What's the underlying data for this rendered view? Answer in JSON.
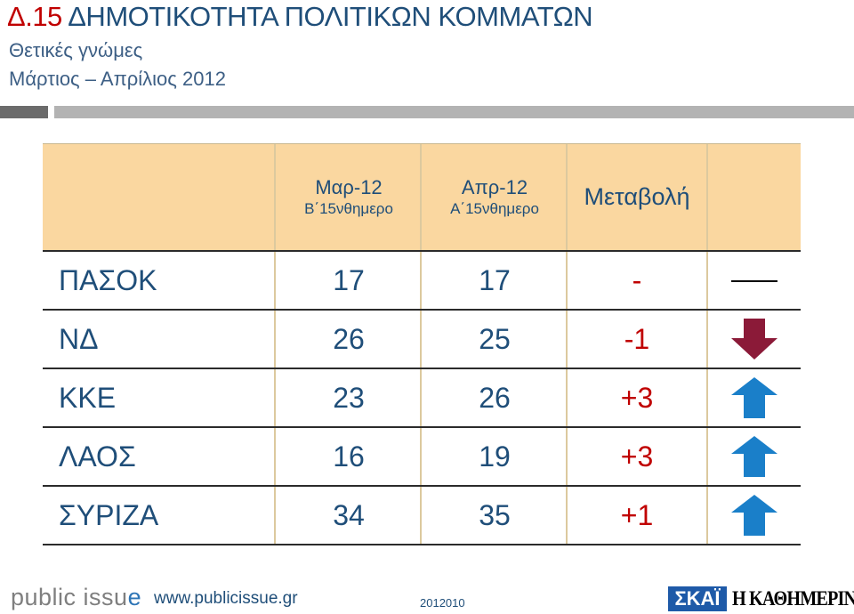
{
  "header": {
    "code": "Δ.15",
    "title": "ΔΗΜΟΤΙΚΟΤΗΤΑ ΠΟΛΙΤΙΚΩΝ ΚΟΜΜΑΤΩΝ",
    "subtitle": "Θετικές γνώμες",
    "period": "Μάρτιος – Απρίλιος 2012"
  },
  "table": {
    "columns": [
      {
        "label": "Μαρ-12",
        "sublabel": "Β΄15νθημερο"
      },
      {
        "label": "Απρ-12",
        "sublabel": "Α΄15νθημερο"
      },
      {
        "label": "Μεταβολή"
      }
    ],
    "rows": [
      {
        "party": "ΠΑΣΟΚ",
        "mar": "17",
        "apr": "17",
        "change": "-",
        "trend": "flat"
      },
      {
        "party": "ΝΔ",
        "mar": "26",
        "apr": "25",
        "change": "-1",
        "trend": "down"
      },
      {
        "party": "ΚΚΕ",
        "mar": "23",
        "apr": "26",
        "change": "+3",
        "trend": "up"
      },
      {
        "party": "ΛΑΟΣ",
        "mar": "16",
        "apr": "19",
        "change": "+3",
        "trend": "up"
      },
      {
        "party": "ΣΥΡΙΖΑ",
        "mar": "34",
        "apr": "35",
        "change": "+1",
        "trend": "up"
      }
    ]
  },
  "colors": {
    "title_code": "#c00000",
    "title": "#1f4e79",
    "header_bg": "#fad7a0",
    "change_text": "#c00000",
    "arrow_up": "#1a7fc9",
    "arrow_down": "#8b1a38"
  },
  "icons": {
    "flat": "flat-line-icon",
    "down": "arrow-down-icon",
    "up": "arrow-up-icon"
  },
  "footer": {
    "logo_part1": "public issu",
    "logo_part2": "e",
    "url": "www.publicissue.gr",
    "code": "2012010",
    "skai": "ΣΚΑΪ",
    "kathimerini": "Η ΚΑΘΗΜΕΡΙΝΗ"
  }
}
